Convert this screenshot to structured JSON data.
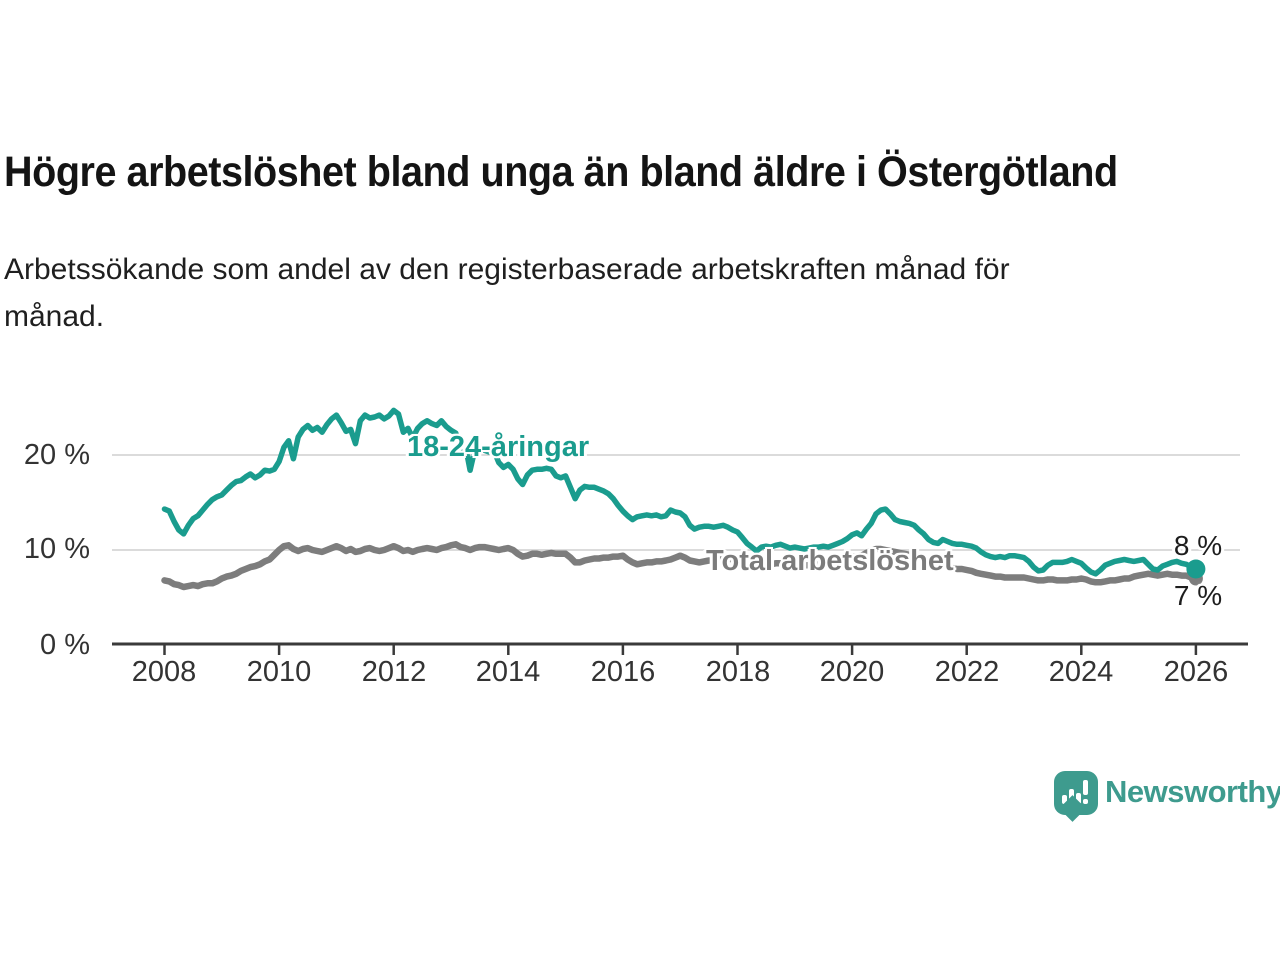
{
  "header": {
    "title": "Högre arbetslöshet bland unga än bland äldre i Östergötland",
    "subtitle_line1": "Arbetssökande som andel av den registerbaserade arbetskraften månad för",
    "subtitle_line2": "månad."
  },
  "chart_data": {
    "type": "line",
    "title": "Högre arbetslöshet bland unga än bland äldre i Östergötland",
    "subtitle": "Arbetssökande som andel av den registerbaserade arbetskraften månad för månad.",
    "x_axis": {
      "tick_labels": [
        "2008",
        "2010",
        "2012",
        "2014",
        "2016",
        "2018",
        "2020",
        "2022",
        "2024",
        "2026"
      ],
      "range": [
        2008,
        2026
      ]
    },
    "y_axis": {
      "tick_values": [
        0,
        10,
        20
      ],
      "tick_labels": [
        "0 %",
        "10 %",
        "20 %"
      ],
      "gridlines": [
        10,
        20
      ],
      "range": [
        0,
        26
      ],
      "unit": "%"
    },
    "legend_position": "inline-labels",
    "series": [
      {
        "name": "18-24-åringar",
        "color": "#1a9c8e",
        "start_year": 2008,
        "interval_months": 1,
        "end_label": "8 %",
        "end_value": 8,
        "end_dot": true,
        "values": [
          14.3,
          14.1,
          13.0,
          12.1,
          11.7,
          12.6,
          13.3,
          13.6,
          14.2,
          14.8,
          15.3,
          15.6,
          15.8,
          16.3,
          16.8,
          17.2,
          17.3,
          17.7,
          18.0,
          17.6,
          17.9,
          18.4,
          18.3,
          18.5,
          19.3,
          20.8,
          21.5,
          19.6,
          21.9,
          22.7,
          23.1,
          22.6,
          22.9,
          22.4,
          23.2,
          23.8,
          24.2,
          23.4,
          22.5,
          22.7,
          21.2,
          23.6,
          24.2,
          23.9,
          24.0,
          24.2,
          23.8,
          24.1,
          24.7,
          24.3,
          22.4,
          22.8,
          21.8,
          22.8,
          23.3,
          23.6,
          23.3,
          23.1,
          23.6,
          23.0,
          22.6,
          22.3,
          20.6,
          21.0,
          18.4,
          20.6,
          20.8,
          20.5,
          20.3,
          20.4,
          19.2,
          18.7,
          19.0,
          18.5,
          17.5,
          16.9,
          17.9,
          18.4,
          18.5,
          18.5,
          18.6,
          18.5,
          17.8,
          17.6,
          17.8,
          16.6,
          15.4,
          16.3,
          16.7,
          16.6,
          16.6,
          16.4,
          16.2,
          15.9,
          15.4,
          14.7,
          14.1,
          13.6,
          13.2,
          13.5,
          13.6,
          13.7,
          13.6,
          13.7,
          13.5,
          13.6,
          14.2,
          14.0,
          13.9,
          13.5,
          12.6,
          12.2,
          12.4,
          12.5,
          12.5,
          12.4,
          12.5,
          12.6,
          12.4,
          12.1,
          11.9,
          11.3,
          10.7,
          10.3,
          9.9,
          10.3,
          10.4,
          10.3,
          10.5,
          10.6,
          10.4,
          10.2,
          10.3,
          10.2,
          10.1,
          10.2,
          10.3,
          10.3,
          10.4,
          10.3,
          10.5,
          10.7,
          10.9,
          11.2,
          11.6,
          11.8,
          11.5,
          12.2,
          12.8,
          13.8,
          14.2,
          14.3,
          13.8,
          13.2,
          13.0,
          12.9,
          12.8,
          12.6,
          12.1,
          11.7,
          11.1,
          10.8,
          10.7,
          11.1,
          10.9,
          10.7,
          10.6,
          10.6,
          10.5,
          10.4,
          10.2,
          9.8,
          9.5,
          9.3,
          9.2,
          9.3,
          9.2,
          9.4,
          9.4,
          9.3,
          9.2,
          8.8,
          8.2,
          7.8,
          7.9,
          8.4,
          8.7,
          8.7,
          8.7,
          8.8,
          9.0,
          8.8,
          8.6,
          8.1,
          7.7,
          7.5,
          7.9,
          8.4,
          8.6,
          8.8,
          8.9,
          9.0,
          8.9,
          8.8,
          8.9,
          9.0,
          8.5,
          8.0,
          7.9,
          8.3,
          8.5,
          8.7,
          8.8,
          8.6,
          8.5,
          8.2,
          8.0
        ]
      },
      {
        "name": "Total arbetslöshet",
        "color": "#7d7d7d",
        "start_year": 2008,
        "interval_months": 1,
        "end_label": "7 %",
        "end_value": 7,
        "end_dot": true,
        "values": [
          6.8,
          6.7,
          6.4,
          6.3,
          6.1,
          6.2,
          6.3,
          6.2,
          6.4,
          6.5,
          6.5,
          6.7,
          7.0,
          7.2,
          7.3,
          7.5,
          7.8,
          8.0,
          8.2,
          8.3,
          8.5,
          8.8,
          9.0,
          9.5,
          10.0,
          10.4,
          10.5,
          10.1,
          9.9,
          10.1,
          10.2,
          10.0,
          9.9,
          9.8,
          10.0,
          10.2,
          10.4,
          10.2,
          9.9,
          10.1,
          9.8,
          9.9,
          10.1,
          10.2,
          10.0,
          9.9,
          10.0,
          10.2,
          10.4,
          10.2,
          9.9,
          10.0,
          9.8,
          10.0,
          10.1,
          10.2,
          10.1,
          10.0,
          10.2,
          10.3,
          10.5,
          10.6,
          10.3,
          10.2,
          10.0,
          10.2,
          10.3,
          10.3,
          10.2,
          10.1,
          10.0,
          10.1,
          10.2,
          10.0,
          9.6,
          9.3,
          9.4,
          9.6,
          9.6,
          9.5,
          9.6,
          9.7,
          9.6,
          9.6,
          9.6,
          9.2,
          8.7,
          8.7,
          8.9,
          9.0,
          9.1,
          9.1,
          9.2,
          9.2,
          9.3,
          9.3,
          9.4,
          9.0,
          8.7,
          8.5,
          8.6,
          8.7,
          8.7,
          8.8,
          8.8,
          8.9,
          9.0,
          9.2,
          9.4,
          9.2,
          8.9,
          8.8,
          8.7,
          8.8,
          8.9,
          8.9,
          9.0,
          9.0,
          9.1,
          9.0,
          8.9,
          8.7,
          8.5,
          8.4,
          8.5,
          8.6,
          8.6,
          8.5,
          8.6,
          8.6,
          8.5,
          8.5,
          8.6,
          8.5,
          8.4,
          8.4,
          8.5,
          8.5,
          8.6,
          8.6,
          8.7,
          8.8,
          8.9,
          9.1,
          9.3,
          9.3,
          9.4,
          9.7,
          9.9,
          10.1,
          10.1,
          10.0,
          9.9,
          9.8,
          9.7,
          9.6,
          9.5,
          9.3,
          9.2,
          9.0,
          8.8,
          8.6,
          8.5,
          8.4,
          8.3,
          8.1,
          8.0,
          8.0,
          7.9,
          7.8,
          7.6,
          7.5,
          7.4,
          7.3,
          7.2,
          7.2,
          7.1,
          7.1,
          7.1,
          7.1,
          7.1,
          7.0,
          6.9,
          6.8,
          6.8,
          6.9,
          6.9,
          6.8,
          6.8,
          6.8,
          6.9,
          6.9,
          7.0,
          6.9,
          6.7,
          6.6,
          6.6,
          6.7,
          6.8,
          6.8,
          6.9,
          7.0,
          7.0,
          7.2,
          7.3,
          7.4,
          7.5,
          7.4,
          7.3,
          7.4,
          7.5,
          7.4,
          7.4,
          7.3,
          7.3,
          7.1,
          7.0
        ]
      }
    ]
  },
  "branding": {
    "logo_text": "Newsworthy",
    "logo_color": "#3e9b8e"
  }
}
